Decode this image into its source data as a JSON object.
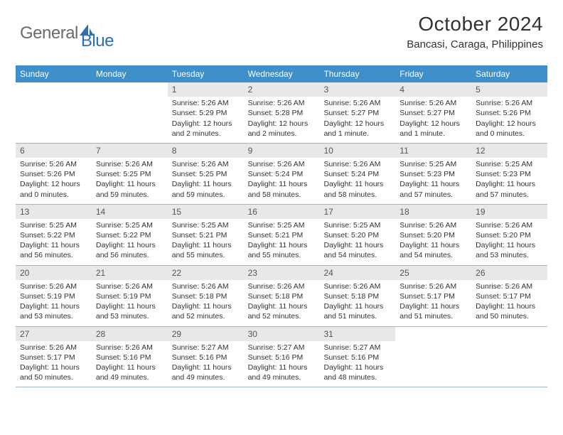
{
  "logo": {
    "word1": "General",
    "word2": "Blue"
  },
  "title": "October 2024",
  "location": "Bancasi, Caraga, Philippines",
  "colors": {
    "header_blue": "#3f8fc9",
    "light_grey": "#e8e8e8",
    "row_divider": "#9fb5c9",
    "logo_grey": "#6b6b6b",
    "logo_blue": "#2c6fb5",
    "background": "#ffffff",
    "text": "#333333"
  },
  "dow": [
    "Sunday",
    "Monday",
    "Tuesday",
    "Wednesday",
    "Thursday",
    "Friday",
    "Saturday"
  ],
  "weeks": [
    [
      {
        "empty": true
      },
      {
        "empty": true
      },
      {
        "num": "1",
        "sunrise": "Sunrise: 5:26 AM",
        "sunset": "Sunset: 5:29 PM",
        "daylight": "Daylight: 12 hours and 2 minutes."
      },
      {
        "num": "2",
        "sunrise": "Sunrise: 5:26 AM",
        "sunset": "Sunset: 5:28 PM",
        "daylight": "Daylight: 12 hours and 2 minutes."
      },
      {
        "num": "3",
        "sunrise": "Sunrise: 5:26 AM",
        "sunset": "Sunset: 5:27 PM",
        "daylight": "Daylight: 12 hours and 1 minute."
      },
      {
        "num": "4",
        "sunrise": "Sunrise: 5:26 AM",
        "sunset": "Sunset: 5:27 PM",
        "daylight": "Daylight: 12 hours and 1 minute."
      },
      {
        "num": "5",
        "sunrise": "Sunrise: 5:26 AM",
        "sunset": "Sunset: 5:26 PM",
        "daylight": "Daylight: 12 hours and 0 minutes."
      }
    ],
    [
      {
        "num": "6",
        "sunrise": "Sunrise: 5:26 AM",
        "sunset": "Sunset: 5:26 PM",
        "daylight": "Daylight: 12 hours and 0 minutes."
      },
      {
        "num": "7",
        "sunrise": "Sunrise: 5:26 AM",
        "sunset": "Sunset: 5:25 PM",
        "daylight": "Daylight: 11 hours and 59 minutes."
      },
      {
        "num": "8",
        "sunrise": "Sunrise: 5:26 AM",
        "sunset": "Sunset: 5:25 PM",
        "daylight": "Daylight: 11 hours and 59 minutes."
      },
      {
        "num": "9",
        "sunrise": "Sunrise: 5:26 AM",
        "sunset": "Sunset: 5:24 PM",
        "daylight": "Daylight: 11 hours and 58 minutes."
      },
      {
        "num": "10",
        "sunrise": "Sunrise: 5:26 AM",
        "sunset": "Sunset: 5:24 PM",
        "daylight": "Daylight: 11 hours and 58 minutes."
      },
      {
        "num": "11",
        "sunrise": "Sunrise: 5:25 AM",
        "sunset": "Sunset: 5:23 PM",
        "daylight": "Daylight: 11 hours and 57 minutes."
      },
      {
        "num": "12",
        "sunrise": "Sunrise: 5:25 AM",
        "sunset": "Sunset: 5:23 PM",
        "daylight": "Daylight: 11 hours and 57 minutes."
      }
    ],
    [
      {
        "num": "13",
        "sunrise": "Sunrise: 5:25 AM",
        "sunset": "Sunset: 5:22 PM",
        "daylight": "Daylight: 11 hours and 56 minutes."
      },
      {
        "num": "14",
        "sunrise": "Sunrise: 5:25 AM",
        "sunset": "Sunset: 5:22 PM",
        "daylight": "Daylight: 11 hours and 56 minutes."
      },
      {
        "num": "15",
        "sunrise": "Sunrise: 5:25 AM",
        "sunset": "Sunset: 5:21 PM",
        "daylight": "Daylight: 11 hours and 55 minutes."
      },
      {
        "num": "16",
        "sunrise": "Sunrise: 5:25 AM",
        "sunset": "Sunset: 5:21 PM",
        "daylight": "Daylight: 11 hours and 55 minutes."
      },
      {
        "num": "17",
        "sunrise": "Sunrise: 5:25 AM",
        "sunset": "Sunset: 5:20 PM",
        "daylight": "Daylight: 11 hours and 54 minutes."
      },
      {
        "num": "18",
        "sunrise": "Sunrise: 5:26 AM",
        "sunset": "Sunset: 5:20 PM",
        "daylight": "Daylight: 11 hours and 54 minutes."
      },
      {
        "num": "19",
        "sunrise": "Sunrise: 5:26 AM",
        "sunset": "Sunset: 5:20 PM",
        "daylight": "Daylight: 11 hours and 53 minutes."
      }
    ],
    [
      {
        "num": "20",
        "sunrise": "Sunrise: 5:26 AM",
        "sunset": "Sunset: 5:19 PM",
        "daylight": "Daylight: 11 hours and 53 minutes."
      },
      {
        "num": "21",
        "sunrise": "Sunrise: 5:26 AM",
        "sunset": "Sunset: 5:19 PM",
        "daylight": "Daylight: 11 hours and 53 minutes."
      },
      {
        "num": "22",
        "sunrise": "Sunrise: 5:26 AM",
        "sunset": "Sunset: 5:18 PM",
        "daylight": "Daylight: 11 hours and 52 minutes."
      },
      {
        "num": "23",
        "sunrise": "Sunrise: 5:26 AM",
        "sunset": "Sunset: 5:18 PM",
        "daylight": "Daylight: 11 hours and 52 minutes."
      },
      {
        "num": "24",
        "sunrise": "Sunrise: 5:26 AM",
        "sunset": "Sunset: 5:18 PM",
        "daylight": "Daylight: 11 hours and 51 minutes."
      },
      {
        "num": "25",
        "sunrise": "Sunrise: 5:26 AM",
        "sunset": "Sunset: 5:17 PM",
        "daylight": "Daylight: 11 hours and 51 minutes."
      },
      {
        "num": "26",
        "sunrise": "Sunrise: 5:26 AM",
        "sunset": "Sunset: 5:17 PM",
        "daylight": "Daylight: 11 hours and 50 minutes."
      }
    ],
    [
      {
        "num": "27",
        "sunrise": "Sunrise: 5:26 AM",
        "sunset": "Sunset: 5:17 PM",
        "daylight": "Daylight: 11 hours and 50 minutes."
      },
      {
        "num": "28",
        "sunrise": "Sunrise: 5:26 AM",
        "sunset": "Sunset: 5:16 PM",
        "daylight": "Daylight: 11 hours and 49 minutes."
      },
      {
        "num": "29",
        "sunrise": "Sunrise: 5:27 AM",
        "sunset": "Sunset: 5:16 PM",
        "daylight": "Daylight: 11 hours and 49 minutes."
      },
      {
        "num": "30",
        "sunrise": "Sunrise: 5:27 AM",
        "sunset": "Sunset: 5:16 PM",
        "daylight": "Daylight: 11 hours and 49 minutes."
      },
      {
        "num": "31",
        "sunrise": "Sunrise: 5:27 AM",
        "sunset": "Sunset: 5:16 PM",
        "daylight": "Daylight: 11 hours and 48 minutes."
      },
      {
        "empty": true
      },
      {
        "empty": true
      }
    ]
  ]
}
